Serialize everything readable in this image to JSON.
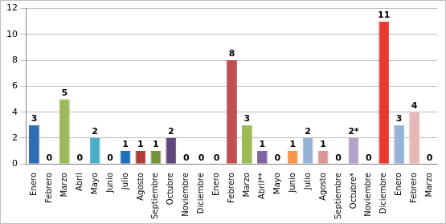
{
  "chart_data": {
    "type": "bar",
    "categories": [
      "Enero",
      "Febrero",
      "Marzo",
      "Abril",
      "Mayo",
      "Junio",
      "Julio",
      "Agosto",
      "Septiembre",
      "Octubre",
      "Noviembre",
      "Diciembre",
      "Enero",
      "Febrero",
      "Marzo",
      "Abril**",
      "Mayo",
      "Junio",
      "Julio",
      "Agosto",
      "Septiembre",
      "Octubre*",
      "Noviembre",
      "Diciembre",
      "Enero",
      "Febrero",
      "Marzo"
    ],
    "values": [
      3,
      0,
      5,
      0,
      2,
      0,
      1,
      1,
      1,
      2,
      0,
      0,
      0,
      8,
      3,
      1,
      0,
      1,
      2,
      1,
      0,
      2,
      0,
      11,
      3,
      4,
      0
    ],
    "value_labels": [
      "3",
      "0",
      "5",
      "0",
      "2",
      "0",
      "1",
      "1",
      "1",
      "2",
      "0",
      "0",
      "0",
      "8",
      "3",
      "1",
      "0",
      "1",
      "2",
      "1",
      "0",
      "2*",
      "0",
      "11",
      "3",
      "4",
      "0"
    ],
    "colors": [
      "#2e6db4",
      "#c0504d",
      "#9bbb59",
      "#8064a2",
      "#4bacc6",
      "#f79646",
      "#1f6fb8",
      "#b03a36",
      "#77933c",
      "#5f497a",
      "#31859c",
      "#e46c0a",
      "#4f81bd",
      "#c0504d",
      "#9bbb59",
      "#8064a2",
      "#4bacc6",
      "#f79646",
      "#95b3d7",
      "#d99694",
      "#c3d69b",
      "#b3a2c7",
      "#93cddd",
      "#e8382f",
      "#95b3d7",
      "#e6b9b8",
      "#c3d69b"
    ],
    "ylim": [
      0,
      12
    ],
    "yticks": [
      0,
      2,
      4,
      6,
      8,
      10,
      12
    ],
    "grid": true,
    "data_labels": true
  }
}
